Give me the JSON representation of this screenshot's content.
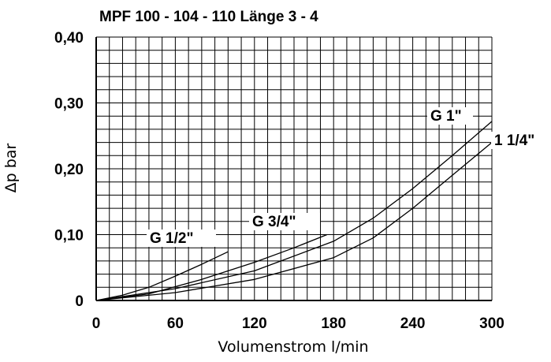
{
  "chart_data": {
    "type": "line",
    "title": "MPF 100 - 104 - 110 Länge 3 - 4",
    "xlabel": "Volumenstrom l/min",
    "ylabel": "Δp bar",
    "xlim": [
      0,
      300
    ],
    "ylim": [
      0,
      0.4
    ],
    "grid": true,
    "x_ticks": [
      "0",
      "60",
      "120",
      "180",
      "240",
      "300"
    ],
    "y_ticks": [
      "0",
      "0,10",
      "0,20",
      "0,30",
      "0,40"
    ],
    "series": [
      {
        "name": "G 1/2\"",
        "x": [
          0,
          20,
          40,
          60,
          80,
          100
        ],
        "y": [
          0,
          0.008,
          0.02,
          0.037,
          0.055,
          0.074
        ]
      },
      {
        "name": "G 3/4\"",
        "x": [
          0,
          40,
          80,
          120,
          150,
          175
        ],
        "y": [
          0,
          0.01,
          0.032,
          0.058,
          0.08,
          0.1
        ]
      },
      {
        "name": "G 1\"",
        "x": [
          0,
          60,
          120,
          180,
          210,
          240,
          270,
          300
        ],
        "y": [
          0,
          0.018,
          0.045,
          0.09,
          0.125,
          0.17,
          0.22,
          0.272
        ]
      },
      {
        "name": "1 1/4\"",
        "x": [
          0,
          60,
          120,
          180,
          210,
          240,
          270,
          300
        ],
        "y": [
          0,
          0.012,
          0.032,
          0.065,
          0.095,
          0.14,
          0.19,
          0.24
        ]
      }
    ]
  }
}
